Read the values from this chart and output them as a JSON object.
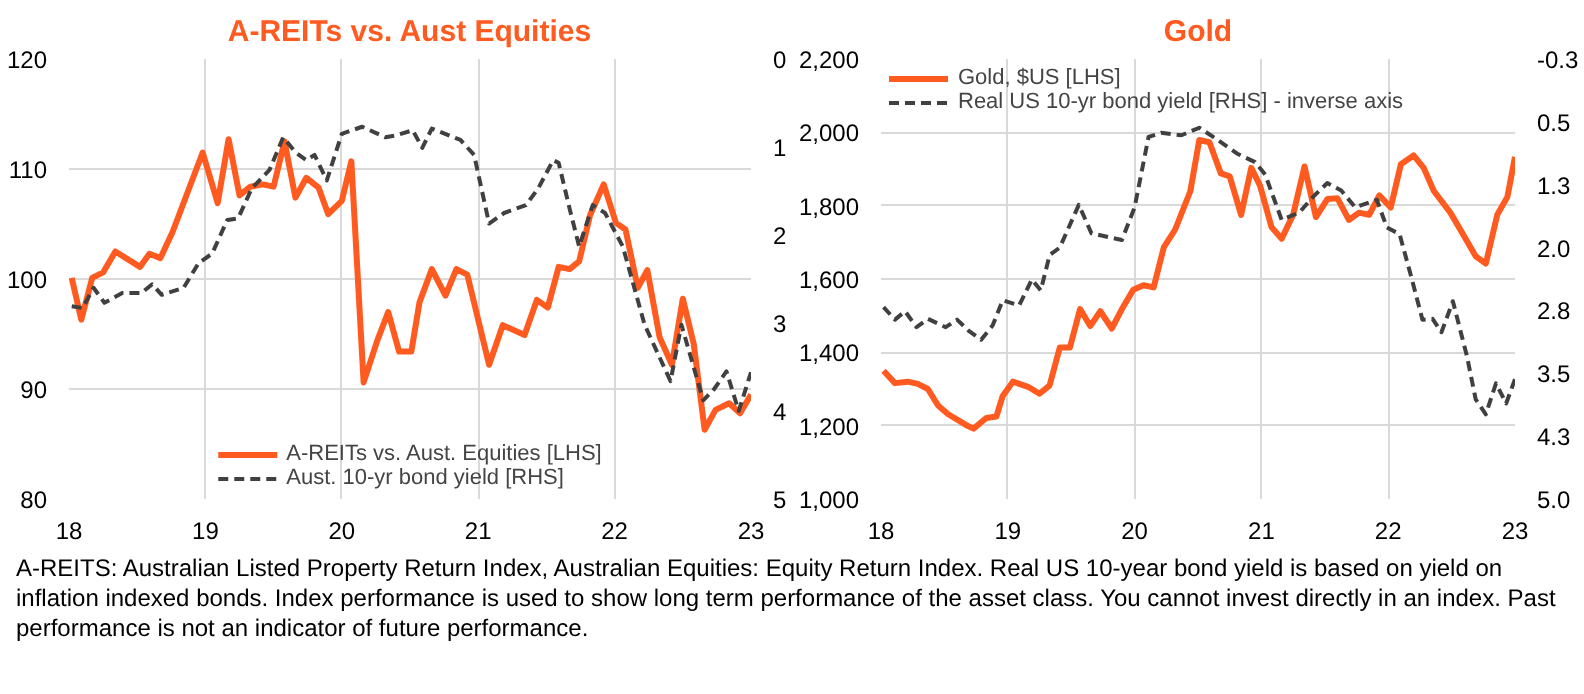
{
  "chart_data": [
    {
      "type": "line",
      "title": "A-REITs vs. Aust Equities",
      "xlim": [
        2018,
        2023
      ],
      "xticks": [
        {
          "value": 2018,
          "label": "18"
        },
        {
          "value": 2019,
          "label": "19"
        },
        {
          "value": 2020,
          "label": "20"
        },
        {
          "value": 2021,
          "label": "21"
        },
        {
          "value": 2022,
          "label": "22"
        },
        {
          "value": 2023,
          "label": "23"
        }
      ],
      "ylim": [
        80,
        120
      ],
      "yticks": [
        80,
        90,
        100,
        110,
        120
      ],
      "y2lim": [
        5,
        0
      ],
      "y2ticks": [
        0,
        1,
        2,
        3,
        4,
        5
      ],
      "grid": true,
      "legend": "bottom",
      "series": [
        {
          "name": "A-REITs vs. Aust. Equities [LHS]",
          "color": "#ff5a1f",
          "line_style": "solid",
          "x": [
            2018.02,
            2018.09,
            2018.17,
            2018.25,
            2018.34,
            2018.52,
            2018.59,
            2018.67,
            2018.76,
            2018.98,
            2019.09,
            2019.17,
            2019.25,
            2019.33,
            2019.42,
            2019.5,
            2019.58,
            2019.66,
            2019.74,
            2019.83,
            2019.9,
            2020.0,
            2020.07,
            2020.16,
            2020.26,
            2020.34,
            2020.42,
            2020.51,
            2020.57,
            2020.66,
            2020.76,
            2020.84,
            2020.92,
            2021.08,
            2021.18,
            2021.34,
            2021.43,
            2021.51,
            2021.59,
            2021.67,
            2021.74,
            2021.82,
            2021.92,
            2022.01,
            2022.08,
            2022.17,
            2022.24,
            2022.33,
            2022.42,
            2022.5,
            2022.58,
            2022.66,
            2022.74,
            2022.84,
            2022.92,
            2023.0
          ],
          "values": [
            100.1,
            96.3,
            100.1,
            100.6,
            102.5,
            101.1,
            102.3,
            101.9,
            104.3,
            111.5,
            106.9,
            112.7,
            107.6,
            108.4,
            108.6,
            108.4,
            112.5,
            107.4,
            109.2,
            108.3,
            105.9,
            107.1,
            110.7,
            90.6,
            94.4,
            97.0,
            93.4,
            93.4,
            97.9,
            100.9,
            98.5,
            100.9,
            100.4,
            92.2,
            95.8,
            94.9,
            98.1,
            97.4,
            101.1,
            100.9,
            101.6,
            105.8,
            108.6,
            105.1,
            104.5,
            99.2,
            100.8,
            94.7,
            92.2,
            98.2,
            94.1,
            86.3,
            88.1,
            88.7,
            87.8,
            89.5
          ]
        },
        {
          "name": "Aust. 10-yr bond yield [RHS]",
          "color": "#404040",
          "line_style": "dashed",
          "axis": "y2",
          "x": [
            2018.02,
            2018.1,
            2018.18,
            2018.26,
            2018.39,
            2018.53,
            2018.61,
            2018.68,
            2018.84,
            2018.95,
            2019.05,
            2019.16,
            2019.24,
            2019.34,
            2019.47,
            2019.57,
            2019.66,
            2019.74,
            2019.8,
            2019.89,
            2020.0,
            2020.15,
            2020.32,
            2020.39,
            2020.52,
            2020.59,
            2020.66,
            2020.87,
            2020.97,
            2021.08,
            2021.19,
            2021.35,
            2021.44,
            2021.55,
            2021.59,
            2021.67,
            2021.74,
            2021.84,
            2021.93,
            2022.06,
            2022.22,
            2022.41,
            2022.49,
            2022.65,
            2022.73,
            2022.82,
            2022.91,
            2023.0
          ],
          "values": [
            2.81,
            2.83,
            2.6,
            2.77,
            2.66,
            2.66,
            2.56,
            2.68,
            2.6,
            2.32,
            2.21,
            1.83,
            1.81,
            1.47,
            1.26,
            0.89,
            1.06,
            1.15,
            1.09,
            1.38,
            0.85,
            0.77,
            0.89,
            0.87,
            0.81,
            1.01,
            0.79,
            0.92,
            1.09,
            1.87,
            1.75,
            1.66,
            1.47,
            1.15,
            1.18,
            1.7,
            2.13,
            1.66,
            1.75,
            2.13,
            3.02,
            3.66,
            3.02,
            3.88,
            3.75,
            3.55,
            4.0,
            3.56
          ]
        }
      ]
    },
    {
      "type": "line",
      "title": "Gold",
      "xlim": [
        2018,
        2023
      ],
      "xticks": [
        {
          "value": 2018,
          "label": "18"
        },
        {
          "value": 2019,
          "label": "19"
        },
        {
          "value": 2020,
          "label": "20"
        },
        {
          "value": 2021,
          "label": "21"
        },
        {
          "value": 2022,
          "label": "22"
        },
        {
          "value": 2023,
          "label": "23"
        }
      ],
      "ylim": [
        1000,
        2200
      ],
      "yticks": [
        {
          "value": 1000,
          "label": "1,000"
        },
        {
          "value": 1200,
          "label": "1,200"
        },
        {
          "value": 1400,
          "label": "1,400"
        },
        {
          "value": 1600,
          "label": "1,600"
        },
        {
          "value": 1800,
          "label": "1,800"
        },
        {
          "value": 2000,
          "label": "2,000"
        },
        {
          "value": 2200,
          "label": "2,200"
        }
      ],
      "y2lim": [
        5.0,
        -0.25
      ],
      "y2ticks": [
        {
          "value": -0.25,
          "label": "-0.3"
        },
        {
          "value": 0.5,
          "label": "0.5"
        },
        {
          "value": 1.25,
          "label": "1.3"
        },
        {
          "value": 2.0,
          "label": "2.0"
        },
        {
          "value": 2.75,
          "label": "2.8"
        },
        {
          "value": 3.5,
          "label": "3.5"
        },
        {
          "value": 4.25,
          "label": "4.3"
        },
        {
          "value": 5.0,
          "label": "5.0"
        }
      ],
      "grid": true,
      "legend": "top left",
      "annotations": [
        "A-REITS: Australian Listed Property Return Index, Australian Equities: Equity Return Index. Real US 10-year bond yield is based on yield on inflation indexed bonds. Index performance is used to show long term performance of the asset class. You cannot invest directly in an index. Past performance is not an indicator of future performance."
      ],
      "series": [
        {
          "name": "Gold, $US [LHS]",
          "color": "#ff5a1f",
          "line_style": "solid",
          "x": [
            2018.02,
            2018.11,
            2018.21,
            2018.29,
            2018.37,
            2018.45,
            2018.53,
            2018.67,
            2018.73,
            2018.83,
            2018.91,
            2018.96,
            2019.04,
            2019.16,
            2019.25,
            2019.33,
            2019.41,
            2019.49,
            2019.57,
            2019.65,
            2019.73,
            2019.82,
            2019.9,
            2019.99,
            2020.07,
            2020.15,
            2020.23,
            2020.32,
            2020.44,
            2020.51,
            2020.59,
            2020.68,
            2020.75,
            2020.84,
            2020.92,
            2020.99,
            2021.08,
            2021.16,
            2021.25,
            2021.34,
            2021.43,
            2021.52,
            2021.6,
            2021.69,
            2021.77,
            2021.85,
            2021.93,
            2022.02,
            2022.1,
            2022.2,
            2022.28,
            2022.36,
            2022.49,
            2022.59,
            2022.69,
            2022.77,
            2022.86,
            2022.94,
            2023.0
          ],
          "values": [
            1350,
            1316,
            1320,
            1314,
            1300,
            1255,
            1231,
            1202,
            1192,
            1221,
            1225,
            1281,
            1320,
            1306,
            1287,
            1310,
            1413,
            1413,
            1518,
            1472,
            1512,
            1465,
            1518,
            1571,
            1583,
            1577,
            1686,
            1735,
            1840,
            1979,
            1973,
            1888,
            1880,
            1775,
            1903,
            1854,
            1741,
            1710,
            1775,
            1907,
            1769,
            1818,
            1820,
            1761,
            1781,
            1775,
            1828,
            1795,
            1913,
            1937,
            1903,
            1840,
            1781,
            1722,
            1662,
            1642,
            1775,
            1824,
            1933
          ]
        },
        {
          "name": "Real US 10-yr bond yield [RHS] - inverse axis",
          "color": "#404040",
          "line_style": "dashed",
          "axis": "y2",
          "x": [
            2018.02,
            2018.11,
            2018.19,
            2018.28,
            2018.37,
            2018.51,
            2018.6,
            2018.69,
            2018.79,
            2018.88,
            2018.96,
            2019.09,
            2019.19,
            2019.26,
            2019.33,
            2019.41,
            2019.56,
            2019.66,
            2019.9,
            2020.0,
            2020.11,
            2020.21,
            2020.37,
            2020.51,
            2020.62,
            2020.81,
            2020.95,
            2021.03,
            2021.16,
            2021.3,
            2021.41,
            2021.52,
            2021.63,
            2021.74,
            2021.91,
            2021.99,
            2022.09,
            2022.18,
            2022.27,
            2022.35,
            2022.42,
            2022.51,
            2022.62,
            2022.69,
            2022.77,
            2022.85,
            2022.93,
            2023.0
          ],
          "values": [
            2.71,
            2.86,
            2.76,
            2.95,
            2.85,
            2.95,
            2.86,
            2.99,
            3.1,
            2.93,
            2.63,
            2.69,
            2.38,
            2.51,
            2.09,
            2.0,
            1.49,
            1.83,
            1.91,
            1.52,
            0.68,
            0.63,
            0.66,
            0.57,
            0.68,
            0.88,
            0.98,
            1.13,
            1.67,
            1.58,
            1.39,
            1.23,
            1.32,
            1.52,
            1.43,
            1.76,
            1.84,
            2.34,
            2.86,
            2.85,
            3.01,
            2.64,
            3.29,
            3.81,
            3.99,
            3.62,
            3.86,
            3.57
          ]
        }
      ]
    }
  ]
}
